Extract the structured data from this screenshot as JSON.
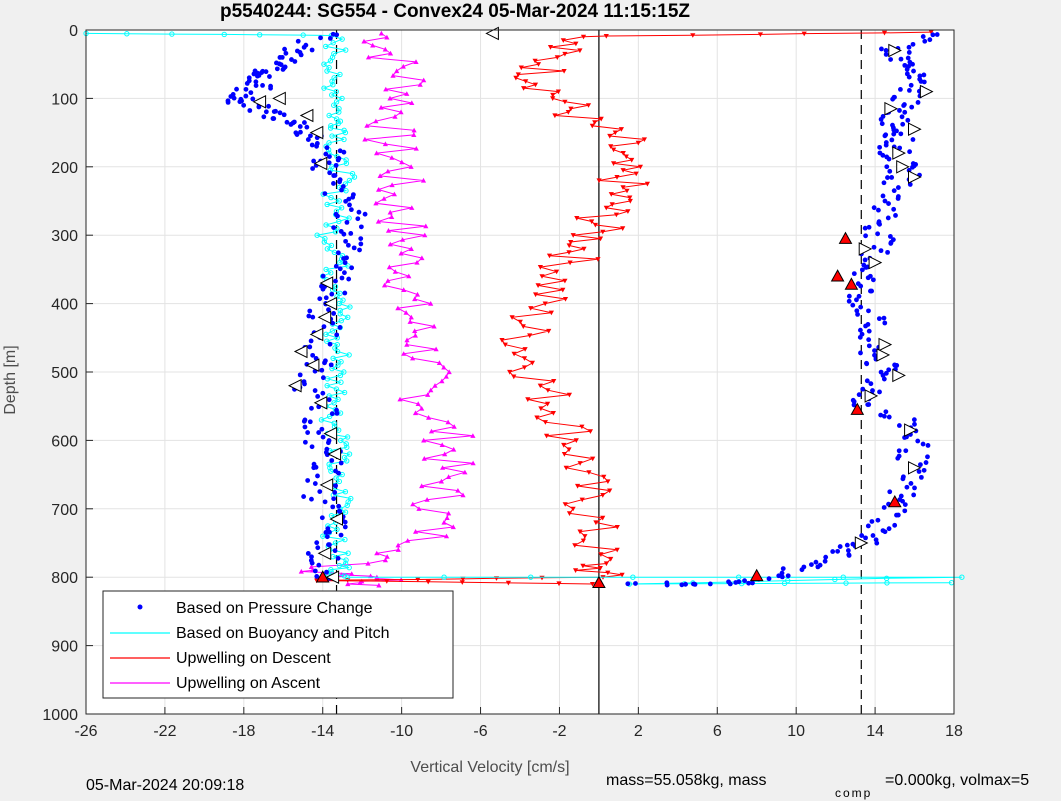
{
  "chart_data": {
    "type": "scatter",
    "title": "p5540244: SG554 - Convex24 05-Mar-2024 11:15:15Z",
    "xlabel": "Vertical Velocity [cm/s]",
    "ylabel": "Depth [m]",
    "xlim": [
      -26,
      18
    ],
    "ylim": [
      0,
      1000
    ],
    "y_reversed": true,
    "grid": true,
    "xticks": [
      -26,
      -22,
      -18,
      -14,
      -10,
      -6,
      -2,
      2,
      6,
      10,
      14,
      18
    ],
    "yticks": [
      0,
      100,
      200,
      300,
      400,
      500,
      600,
      700,
      800,
      900,
      1000
    ],
    "reference_lines": [
      {
        "x": 0,
        "style": "solid"
      },
      {
        "x": -13.3,
        "style": "dashed"
      },
      {
        "x": 13.3,
        "style": "dashed"
      }
    ],
    "legend": {
      "placement": "bottom-left",
      "entries": [
        {
          "label": "Based on Pressure Change",
          "color": "#0000ff",
          "marker": "dot"
        },
        {
          "label": "Based on Buoyancy and Pitch",
          "color": "#00ffff",
          "marker": "line"
        },
        {
          "label": "Upwelling on Descent",
          "color": "#ff0000",
          "marker": "line"
        },
        {
          "label": "Upwelling on Ascent",
          "color": "#ff00ff",
          "marker": "line"
        }
      ]
    },
    "series": [
      {
        "name": "Based on Pressure Change",
        "color": "#0000ff",
        "style": "dots",
        "profiles": [
          {
            "phase": "descent",
            "points": [
              [
                -13.8,
                5
              ],
              [
                -15.5,
                30
              ],
              [
                -16.0,
                45
              ],
              [
                -16.8,
                60
              ],
              [
                -17.0,
                70
              ],
              [
                -17.3,
                85
              ],
              [
                -18.8,
                100
              ],
              [
                -17.5,
                110
              ],
              [
                -16.4,
                125
              ],
              [
                -15.0,
                140
              ],
              [
                -14.8,
                160
              ],
              [
                -13.2,
                180
              ],
              [
                -14.0,
                200
              ],
              [
                -13.5,
                230
              ],
              [
                -12.5,
                260
              ],
              [
                -12.8,
                290
              ],
              [
                -12.2,
                320
              ],
              [
                -13.2,
                350
              ],
              [
                -13.5,
                380
              ],
              [
                -14.0,
                410
              ],
              [
                -13.8,
                440
              ],
              [
                -14.5,
                470
              ],
              [
                -14.3,
                500
              ],
              [
                -14.7,
                530
              ],
              [
                -14.0,
                560
              ],
              [
                -14.6,
                590
              ],
              [
                -13.6,
                620
              ],
              [
                -13.9,
                650
              ],
              [
                -14.2,
                680
              ],
              [
                -13.4,
                710
              ],
              [
                -13.7,
                740
              ],
              [
                -14.0,
                770
              ],
              [
                -13.8,
                800
              ]
            ]
          },
          {
            "phase": "ascent",
            "points": [
              [
                16.6,
                5
              ],
              [
                15.0,
                30
              ],
              [
                15.5,
                50
              ],
              [
                15.8,
                70
              ],
              [
                16.0,
                90
              ],
              [
                15.2,
                110
              ],
              [
                15.0,
                130
              ],
              [
                15.5,
                150
              ],
              [
                14.8,
                170
              ],
              [
                15.2,
                190
              ],
              [
                15.5,
                210
              ],
              [
                14.9,
                240
              ],
              [
                14.5,
                270
              ],
              [
                14.2,
                300
              ],
              [
                14.0,
                330
              ],
              [
                13.5,
                360
              ],
              [
                13.2,
                390
              ],
              [
                13.8,
                420
              ],
              [
                13.5,
                450
              ],
              [
                14.0,
                480
              ],
              [
                14.5,
                500
              ],
              [
                13.8,
                530
              ],
              [
                13.4,
                550
              ],
              [
                15.8,
                580
              ],
              [
                16.0,
                610
              ],
              [
                15.8,
                640
              ],
              [
                15.4,
                670
              ],
              [
                15.0,
                700
              ],
              [
                14.3,
                730
              ],
              [
                13.3,
                750
              ],
              [
                12.0,
                770
              ],
              [
                10.0,
                790
              ],
              [
                8.0,
                805
              ],
              [
                6.0,
                808
              ],
              [
                2.0,
                810
              ]
            ]
          }
        ]
      },
      {
        "name": "Based on Buoyancy and Pitch",
        "color": "#00ffff",
        "style": "line-circle",
        "profiles": [
          {
            "phase": "descent",
            "points": [
              [
                -25.5,
                5
              ],
              [
                -13.5,
                8
              ],
              [
                -13.2,
                40
              ],
              [
                -13.8,
                70
              ],
              [
                -13.0,
                100
              ],
              [
                -13.4,
                130
              ],
              [
                -12.8,
                150
              ],
              [
                -13.6,
                180
              ],
              [
                -12.9,
                210
              ],
              [
                -13.4,
                240
              ],
              [
                -13.1,
                270
              ],
              [
                -13.7,
                300
              ],
              [
                -13.0,
                330
              ],
              [
                -13.5,
                360
              ],
              [
                -12.8,
                390
              ],
              [
                -13.2,
                420
              ],
              [
                -13.6,
                450
              ],
              [
                -13.0,
                480
              ],
              [
                -13.4,
                510
              ],
              [
                -13.1,
                540
              ],
              [
                -13.5,
                570
              ],
              [
                -13.0,
                600
              ],
              [
                -13.3,
                630
              ],
              [
                -13.6,
                660
              ],
              [
                -12.8,
                690
              ],
              [
                -13.2,
                720
              ],
              [
                -13.5,
                750
              ],
              [
                -13.0,
                780
              ],
              [
                -13.2,
                798
              ]
            ]
          },
          {
            "phase": "ascent",
            "points": [
              [
                -13.2,
                800
              ],
              [
                17.8,
                800
              ],
              [
                2.0,
                810
              ],
              [
                17.8,
                808
              ]
            ]
          }
        ]
      },
      {
        "name": "Upwelling on Descent",
        "color": "#ff0000",
        "style": "line-triangle",
        "profiles": [
          {
            "phase": "descent",
            "points": [
              [
                18.0,
                3
              ],
              [
                -1.5,
                10
              ],
              [
                -2.5,
                40
              ],
              [
                -3.0,
                70
              ],
              [
                -2.0,
                100
              ],
              [
                -1.0,
                130
              ],
              [
                1.0,
                160
              ],
              [
                0.5,
                190
              ],
              [
                1.2,
                220
              ],
              [
                0.8,
                250
              ],
              [
                0.0,
                280
              ],
              [
                -0.5,
                310
              ],
              [
                -1.5,
                340
              ],
              [
                -2.5,
                380
              ],
              [
                -3.5,
                420
              ],
              [
                -3.8,
                460
              ],
              [
                -3.2,
                500
              ],
              [
                -2.5,
                540
              ],
              [
                -1.5,
                580
              ],
              [
                -1.0,
                620
              ],
              [
                -0.8,
                660
              ],
              [
                -0.5,
                700
              ],
              [
                -0.3,
                740
              ],
              [
                -0.2,
                780
              ],
              [
                -0.1,
                800
              ],
              [
                -14.0,
                805
              ],
              [
                0.0,
                810
              ]
            ]
          }
        ]
      },
      {
        "name": "Upwelling on Ascent",
        "color": "#ff00ff",
        "style": "line-triangle",
        "profiles": [
          {
            "phase": "ascent",
            "points": [
              [
                -11.0,
                5
              ],
              [
                -10.5,
                40
              ],
              [
                -9.5,
                80
              ],
              [
                -10.2,
                120
              ],
              [
                -10.8,
                160
              ],
              [
                -10.0,
                200
              ],
              [
                -10.5,
                240
              ],
              [
                -10.0,
                280
              ],
              [
                -9.8,
                320
              ],
              [
                -9.5,
                360
              ],
              [
                -9.8,
                400
              ],
              [
                -9.2,
                440
              ],
              [
                -8.8,
                480
              ],
              [
                -9.0,
                520
              ],
              [
                -8.5,
                560
              ],
              [
                -7.5,
                600
              ],
              [
                -7.8,
                640
              ],
              [
                -8.0,
                680
              ],
              [
                -8.3,
                720
              ],
              [
                -9.0,
                760
              ],
              [
                -14.5,
                790
              ],
              [
                -10.5,
                800
              ],
              [
                -11.5,
                812
              ]
            ]
          }
        ]
      },
      {
        "name": "",
        "color": "#000000",
        "style": "open-triangle",
        "profiles": [
          {
            "phase": "descent",
            "direction": "left",
            "points": [
              [
                -5.4,
                5
              ],
              [
                -17.2,
                105
              ],
              [
                -16.2,
                100
              ],
              [
                -14.8,
                125
              ],
              [
                -14.3,
                150
              ],
              [
                -14.1,
                195
              ],
              [
                -13.8,
                370
              ],
              [
                -13.6,
                400
              ],
              [
                -13.9,
                420
              ],
              [
                -14.3,
                445
              ],
              [
                -15.1,
                470
              ],
              [
                -14.5,
                490
              ],
              [
                -15.4,
                520
              ],
              [
                -14.1,
                545
              ],
              [
                -13.6,
                590
              ],
              [
                -13.4,
                620
              ],
              [
                -13.8,
                665
              ],
              [
                -13.3,
                715
              ],
              [
                -13.9,
                765
              ],
              [
                -13.5,
                800
              ]
            ]
          },
          {
            "phase": "ascent",
            "direction": "right",
            "points": [
              [
                15.0,
                30
              ],
              [
                16.6,
                90
              ],
              [
                14.8,
                115
              ],
              [
                16.0,
                145
              ],
              [
                15.2,
                180
              ],
              [
                15.4,
                200
              ],
              [
                16.0,
                215
              ],
              [
                13.5,
                320
              ],
              [
                14.0,
                340
              ],
              [
                14.5,
                460
              ],
              [
                14.4,
                475
              ],
              [
                15.2,
                505
              ],
              [
                13.8,
                535
              ],
              [
                15.8,
                585
              ],
              [
                16.0,
                640
              ],
              [
                13.3,
                750
              ]
            ]
          }
        ]
      },
      {
        "name": "",
        "color": "#ff0000",
        "style": "filled-triangle",
        "profiles": [
          {
            "phase": "ascent",
            "points": [
              [
                12.5,
                305
              ],
              [
                12.1,
                360
              ],
              [
                12.8,
                372
              ],
              [
                13.1,
                555
              ],
              [
                15.0,
                690
              ],
              [
                8.0,
                798
              ],
              [
                0.0,
                808
              ],
              [
                -14.0,
                800
              ]
            ]
          }
        ]
      }
    ],
    "footer_left": "05-Mar-2024 20:09:18",
    "footer_right": {
      "a": "mass=55.058kg, mass",
      "b": "comp",
      "c": "=0.000kg, volmax=5"
    }
  }
}
